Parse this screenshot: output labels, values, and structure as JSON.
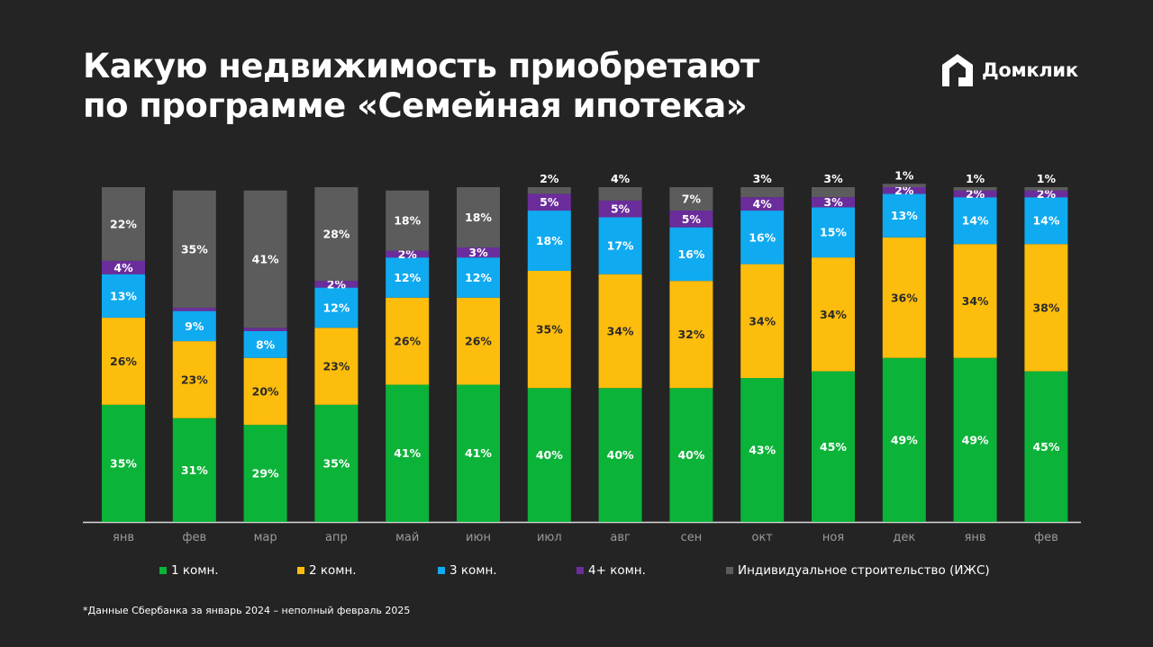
{
  "title": {
    "line1": "Какую недвижимость приобретают",
    "line2": "по программе «Семейная ипотека»"
  },
  "logo": {
    "name": "Домклик",
    "icon": "domclick-house-icon"
  },
  "footnote": "*Данные Сбербанка за январь 2024 – неполный февраль 2025",
  "colors": {
    "background": "#242424",
    "room1": "#0cb339",
    "room2": "#fdbd0c",
    "room3": "#10aaf0",
    "room4": "#6b2d9c",
    "izhs": "#5c5c5c"
  },
  "chart_data": {
    "type": "bar",
    "stacked": true,
    "categories": [
      "янв",
      "фев",
      "мар",
      "апр",
      "май",
      "июн",
      "июл",
      "авг",
      "сен",
      "окт",
      "ноя",
      "дек",
      "янв",
      "фев"
    ],
    "series": [
      {
        "name": "1 комн.",
        "color": "#0cb339",
        "values": [
          35,
          31,
          29,
          35,
          41,
          41,
          40,
          40,
          40,
          43,
          45,
          49,
          49,
          45
        ]
      },
      {
        "name": "2 комн.",
        "color": "#fdbd0c",
        "values": [
          26,
          23,
          20,
          23,
          26,
          26,
          35,
          34,
          32,
          34,
          34,
          36,
          34,
          38
        ]
      },
      {
        "name": "3 комн.",
        "color": "#10aaf0",
        "values": [
          13,
          9,
          8,
          12,
          12,
          12,
          18,
          17,
          16,
          16,
          15,
          13,
          14,
          14
        ]
      },
      {
        "name": "4+ комн.",
        "color": "#6b2d9c",
        "values": [
          4,
          1,
          1,
          2,
          2,
          3,
          5,
          5,
          5,
          4,
          3,
          2,
          2,
          2
        ]
      },
      {
        "name": "Индивидуальное строительство (ИЖС)",
        "color": "#5c5c5c",
        "values": [
          22,
          35,
          41,
          28,
          18,
          18,
          2,
          4,
          7,
          3,
          3,
          1,
          1,
          1
        ]
      }
    ],
    "unit": "%",
    "ylim": [
      0,
      100
    ],
    "grid": false,
    "legend": "bottom"
  }
}
